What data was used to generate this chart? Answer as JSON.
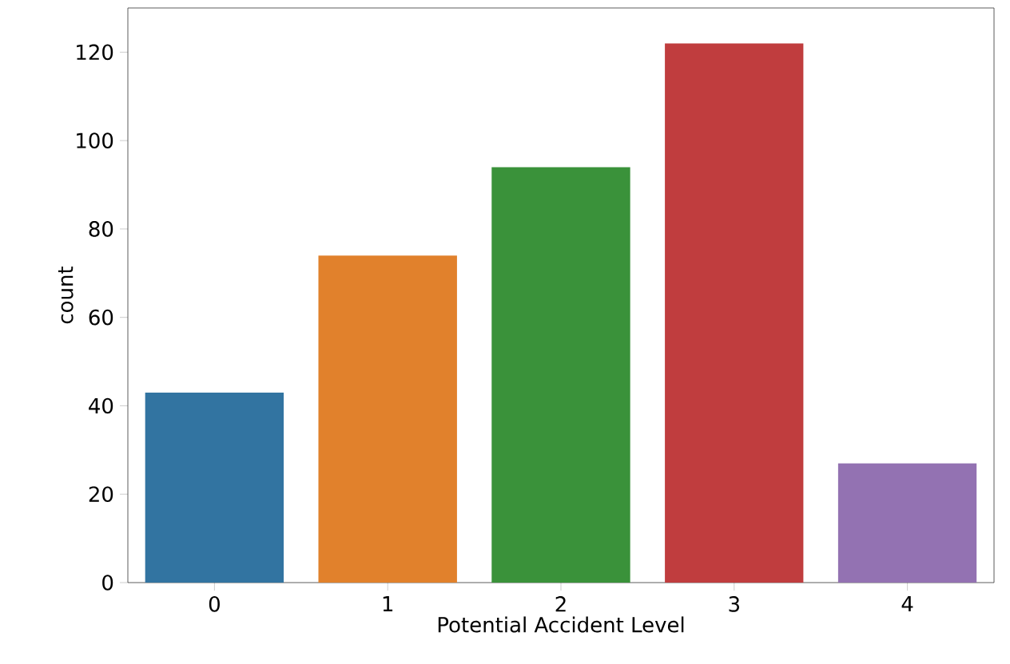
{
  "chart_data": {
    "type": "bar",
    "xlabel": "Potential Accident Level",
    "ylabel": "count",
    "categories": [
      "0",
      "1",
      "2",
      "3",
      "4"
    ],
    "values": [
      43,
      74,
      94,
      122,
      27
    ],
    "colors": [
      "#3274a1",
      "#e1812c",
      "#3a923a",
      "#c03d3e",
      "#9372b2"
    ],
    "ylim": [
      0,
      130
    ],
    "yticks": [
      0,
      20,
      40,
      60,
      80,
      100,
      120
    ],
    "grid": false
  }
}
